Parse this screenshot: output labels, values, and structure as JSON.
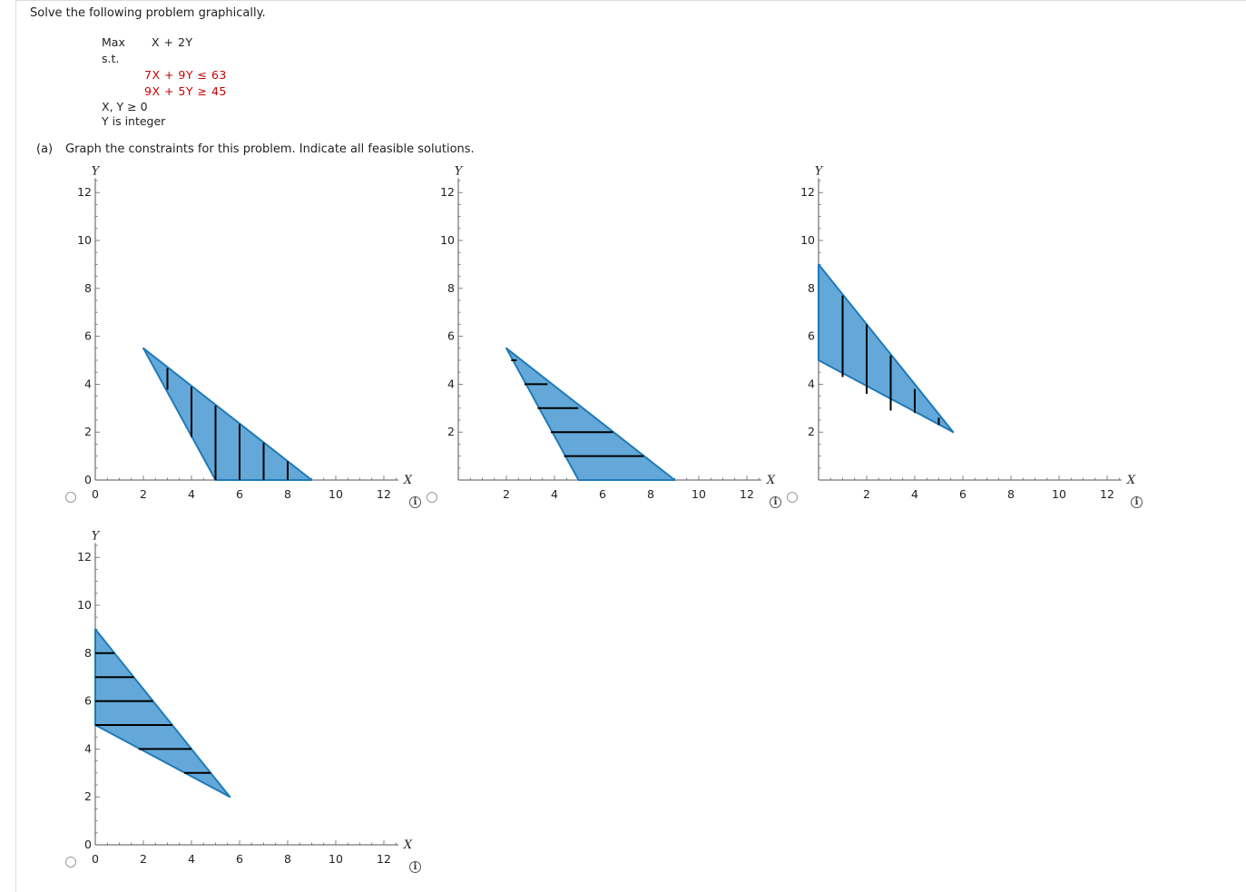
{
  "question": {
    "prompt": "Solve the following problem graphically.",
    "objective_label": "Max",
    "objective_expr": "X + 2Y",
    "st_label": "s.t.",
    "constraints": [
      "7X + 9Y ≤ 63",
      "9X + 5Y ≥ 45"
    ],
    "nonneg": "X, Y ≥ 0",
    "integer_note": "Y is integer",
    "part_a_label": "(a)",
    "part_a_text": "Graph the constraints for this problem. Indicate all feasible solutions."
  },
  "colors": {
    "fill": "#63a8d8",
    "edge": "#1f7ab8",
    "line": "#000000",
    "constraint_text": "#cc0000"
  },
  "info_icon": "info-icon",
  "chart_data": [
    {
      "type": "area",
      "xlabel": "X",
      "ylabel": "Y",
      "xlim": [
        0,
        12
      ],
      "ylim": [
        0,
        12
      ],
      "xticks": [
        "0",
        "2",
        "4",
        "6",
        "8",
        "10",
        "12"
      ],
      "yticks": [
        "0",
        "2",
        "4",
        "6",
        "8",
        "10",
        "12"
      ],
      "region": [
        [
          2,
          5.5
        ],
        [
          9,
          0
        ],
        [
          5,
          0
        ]
      ],
      "hatch": "vertical",
      "hatch_lines": [
        [
          3,
          3.77,
          4.67
        ],
        [
          4,
          1.8,
          3.89
        ],
        [
          5,
          0,
          3.11
        ],
        [
          6,
          0,
          2.33
        ],
        [
          7,
          0,
          1.56
        ],
        [
          8,
          0,
          0.78
        ]
      ]
    },
    {
      "type": "area",
      "xlabel": "X",
      "ylabel": "Y",
      "xlim": [
        0,
        12
      ],
      "ylim": [
        0,
        12
      ],
      "xticks": [
        "",
        "2",
        "4",
        "6",
        "8",
        "10",
        "12"
      ],
      "yticks": [
        "",
        "2",
        "4",
        "6",
        "8",
        "10",
        "12"
      ],
      "region": [
        [
          2,
          5.5
        ],
        [
          9,
          0
        ],
        [
          5,
          0
        ]
      ],
      "hatch": "horizontal",
      "hatch_lines": [
        [
          5,
          2.2,
          2.43
        ],
        [
          4,
          2.75,
          3.71
        ],
        [
          3,
          3.3,
          4.99
        ],
        [
          2,
          3.85,
          6.43
        ],
        [
          1,
          4.4,
          7.71
        ]
      ]
    },
    {
      "type": "area",
      "xlabel": "X",
      "ylabel": "Y",
      "xlim": [
        0,
        12
      ],
      "ylim": [
        0,
        12
      ],
      "xticks": [
        "",
        "2",
        "4",
        "6",
        "8",
        "10",
        "12"
      ],
      "yticks": [
        "",
        "2",
        "4",
        "6",
        "8",
        "10",
        "12"
      ],
      "region": [
        [
          0,
          9
        ],
        [
          0,
          5
        ],
        [
          5.6,
          2
        ]
      ],
      "hatch": "vertical",
      "hatch_lines": [
        [
          1,
          4.3,
          7.7
        ],
        [
          2,
          3.6,
          6.5
        ],
        [
          3,
          2.9,
          5.2
        ],
        [
          4,
          2.8,
          3.8
        ],
        [
          5,
          2.3,
          2.6
        ]
      ]
    },
    {
      "type": "area",
      "xlabel": "X",
      "ylabel": "Y",
      "xlim": [
        0,
        12
      ],
      "ylim": [
        0,
        12
      ],
      "xticks": [
        "0",
        "2",
        "4",
        "6",
        "8",
        "10",
        "12"
      ],
      "yticks": [
        "0",
        "2",
        "4",
        "6",
        "8",
        "10",
        "12"
      ],
      "region": [
        [
          0,
          9
        ],
        [
          0,
          5
        ],
        [
          5.6,
          2
        ]
      ],
      "hatch": "horizontal",
      "hatch_lines": [
        [
          8,
          0,
          0.8
        ],
        [
          7,
          0,
          1.6
        ],
        [
          6,
          0,
          2.4
        ],
        [
          5,
          0,
          3.2
        ],
        [
          4,
          1.8,
          4
        ],
        [
          3,
          3.7,
          4.8
        ]
      ]
    }
  ]
}
